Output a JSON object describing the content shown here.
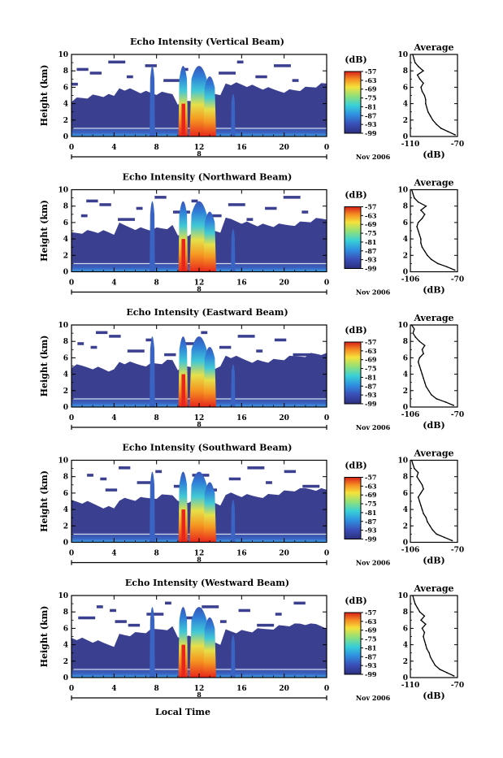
{
  "figure": {
    "xlabel": "Local Time",
    "date_label": "Nov 2006",
    "day_label": "8",
    "colorbar_unit": "(dB)",
    "colorbar_ticks": [
      "-57",
      "-63",
      "-69",
      "-75",
      "-81",
      "-87",
      "-93",
      "-99"
    ],
    "colors": {
      "background_low": "#3b3f8f",
      "core_high": "#e8261c",
      "no_data": "#ffffff"
    }
  },
  "chart_data": [
    {
      "type": "heatmap",
      "title": "Echo Intensity (Vertical Beam)",
      "ylabel": "Height (km)",
      "x_ticks": [
        "0",
        "4",
        "8",
        "12",
        "16",
        "20",
        "0"
      ],
      "y_ticks": [
        "0",
        "2",
        "4",
        "6",
        "8",
        "10"
      ],
      "xlim": [
        0,
        24
      ],
      "ylim": [
        0,
        10
      ],
      "colorbar_range_db": [
        -99,
        -57
      ],
      "profile": {
        "title": "Average",
        "xlabel": "(dB)",
        "x_ticks": [
          "-110",
          "-70"
        ],
        "xlim": [
          -110,
          -70
        ],
        "ylim": [
          0,
          10
        ],
        "y_ticks": [
          "0",
          "2",
          "4",
          "6",
          "8",
          "10"
        ],
        "heights_km": [
          0.2,
          0.6,
          1.0,
          1.5,
          2.0,
          2.5,
          3.0,
          3.5,
          4.0,
          4.5,
          5.0,
          5.5,
          6.0,
          6.5,
          7.0,
          7.5,
          8.0,
          8.5,
          9.0,
          9.5,
          10.0
        ],
        "values_db": [
          -72,
          -78,
          -84,
          -88,
          -91,
          -93,
          -95,
          -96,
          -97,
          -97,
          -98,
          -100,
          -101,
          -99,
          -102,
          -104,
          -99,
          -103,
          -106,
          -107,
          -108
        ]
      }
    },
    {
      "type": "heatmap",
      "title": "Echo Intensity (Northward Beam)",
      "ylabel": "Height (km)",
      "x_ticks": [
        "0",
        "4",
        "8",
        "12",
        "16",
        "20",
        "0"
      ],
      "y_ticks": [
        "0",
        "2",
        "4",
        "6",
        "8",
        "10"
      ],
      "xlim": [
        0,
        24
      ],
      "ylim": [
        0,
        10
      ],
      "colorbar_range_db": [
        -99,
        -57
      ],
      "profile": {
        "title": "Average",
        "xlabel": "(dB)",
        "x_ticks": [
          "-106",
          "-70"
        ],
        "xlim": [
          -106,
          -70
        ],
        "ylim": [
          0,
          10
        ],
        "y_ticks": [
          "0",
          "2",
          "4",
          "6",
          "8",
          "10"
        ],
        "heights_km": [
          0.2,
          0.6,
          1.0,
          1.5,
          2.0,
          2.5,
          3.0,
          3.5,
          4.0,
          4.5,
          5.0,
          5.5,
          6.0,
          6.5,
          7.0,
          7.5,
          8.0,
          8.5,
          9.0,
          9.5,
          10.0
        ],
        "values_db": [
          -72,
          -78,
          -85,
          -90,
          -93,
          -95,
          -97,
          -98,
          -98,
          -99,
          -100,
          -101,
          -100,
          -97,
          -95,
          -98,
          -94,
          -100,
          -103,
          -104,
          -105
        ]
      }
    },
    {
      "type": "heatmap",
      "title": "Echo Intensity (Eastward Beam)",
      "ylabel": "Height (km)",
      "x_ticks": [
        "0",
        "4",
        "8",
        "12",
        "16",
        "20",
        "0"
      ],
      "y_ticks": [
        "0",
        "2",
        "4",
        "6",
        "8",
        "10"
      ],
      "xlim": [
        0,
        24
      ],
      "ylim": [
        0,
        10
      ],
      "colorbar_range_db": [
        -99,
        -57
      ],
      "profile": {
        "title": "Average",
        "xlabel": "(dB)",
        "x_ticks": [
          "-106",
          "-70"
        ],
        "xlim": [
          -106,
          -70
        ],
        "ylim": [
          0,
          10
        ],
        "y_ticks": [
          "0",
          "2",
          "4",
          "6",
          "8",
          "10"
        ],
        "heights_km": [
          0.2,
          0.6,
          1.0,
          1.5,
          2.0,
          2.5,
          3.0,
          3.5,
          4.0,
          4.5,
          5.0,
          5.5,
          6.0,
          6.5,
          7.0,
          7.5,
          8.0,
          8.5,
          9.0,
          9.5,
          10.0
        ],
        "values_db": [
          -73,
          -79,
          -86,
          -90,
          -92,
          -94,
          -95,
          -96,
          -97,
          -98,
          -99,
          -100,
          -99,
          -96,
          -97,
          -95,
          -99,
          -102,
          -104,
          -103,
          -105
        ]
      }
    },
    {
      "type": "heatmap",
      "title": "Echo Intensity (Southward Beam)",
      "ylabel": "Height (km)",
      "x_ticks": [
        "0",
        "4",
        "8",
        "12",
        "16",
        "20",
        "0"
      ],
      "y_ticks": [
        "0",
        "2",
        "4",
        "6",
        "8",
        "10"
      ],
      "xlim": [
        0,
        24
      ],
      "ylim": [
        0,
        10
      ],
      "colorbar_range_db": [
        -99,
        -57
      ],
      "profile": {
        "title": "Average",
        "xlabel": "(dB)",
        "x_ticks": [
          "-106",
          "-70"
        ],
        "xlim": [
          -106,
          -70
        ],
        "ylim": [
          0,
          10
        ],
        "y_ticks": [
          "0",
          "2",
          "4",
          "6",
          "8",
          "10"
        ],
        "heights_km": [
          0.2,
          0.6,
          1.0,
          1.5,
          2.0,
          2.5,
          3.0,
          3.5,
          4.0,
          4.5,
          5.0,
          5.5,
          6.0,
          6.5,
          7.0,
          7.5,
          8.0,
          8.5,
          9.0,
          9.5,
          10.0
        ],
        "values_db": [
          -74,
          -80,
          -86,
          -89,
          -91,
          -93,
          -94,
          -96,
          -97,
          -98,
          -99,
          -100,
          -98,
          -96,
          -97,
          -99,
          -101,
          -100,
          -103,
          -104,
          -105
        ]
      }
    },
    {
      "type": "heatmap",
      "title": "Echo Intensity (Westward Beam)",
      "ylabel": "Height (km)",
      "x_ticks": [
        "0",
        "4",
        "8",
        "12",
        "16",
        "20",
        "0"
      ],
      "y_ticks": [
        "0",
        "2",
        "4",
        "6",
        "8",
        "10"
      ],
      "xlim": [
        0,
        24
      ],
      "ylim": [
        0,
        10
      ],
      "colorbar_range_db": [
        -99,
        -57
      ],
      "profile": {
        "title": "Average",
        "xlabel": "(dB)",
        "x_ticks": [
          "-110",
          "-70"
        ],
        "xlim": [
          -110,
          -70
        ],
        "ylim": [
          0,
          10
        ],
        "y_ticks": [
          "0",
          "2",
          "4",
          "6",
          "8",
          "10"
        ],
        "heights_km": [
          0.2,
          0.6,
          1.0,
          1.5,
          2.0,
          2.5,
          3.0,
          3.5,
          4.0,
          4.5,
          5.0,
          5.5,
          6.0,
          6.5,
          7.0,
          7.5,
          8.0,
          8.5,
          9.0,
          9.5,
          10.0
        ],
        "values_db": [
          -73,
          -79,
          -85,
          -89,
          -91,
          -93,
          -94,
          -96,
          -97,
          -98,
          -99,
          -98,
          -100,
          -97,
          -101,
          -98,
          -102,
          -104,
          -106,
          -107,
          -108
        ]
      }
    }
  ]
}
